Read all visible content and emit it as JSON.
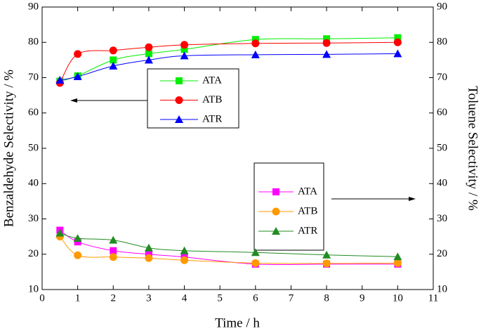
{
  "chart_data": {
    "type": "line",
    "x_label": "Time / h",
    "y_label": "Benzaldehyde Selectivity / %",
    "y2_label": "Toluene Selectivity / %",
    "xlim": [
      0,
      11
    ],
    "xticks": [
      0,
      1,
      2,
      3,
      4,
      5,
      6,
      7,
      8,
      9,
      10,
      11
    ],
    "ylim": [
      10,
      90
    ],
    "yticks": [
      10,
      20,
      30,
      40,
      50,
      60,
      70,
      80,
      90
    ],
    "y2lim": [
      10,
      90
    ],
    "y2ticks": [
      10,
      20,
      30,
      40,
      50,
      60,
      70,
      80,
      90
    ],
    "x": [
      0.5,
      1,
      2,
      3,
      4,
      6,
      8,
      10
    ],
    "series": [
      {
        "name": "ATA",
        "color": "#00ee00",
        "marker": "square",
        "values": [
          69,
          70.5,
          75,
          76.8,
          78,
          80.8,
          81,
          81.3
        ]
      },
      {
        "name": "ATB",
        "color": "#ff0000",
        "marker": "circle",
        "values": [
          68.5,
          76.7,
          77.7,
          78.6,
          79.3,
          79.7,
          79.8,
          80
        ]
      },
      {
        "name": "ATR",
        "color": "#0000ff",
        "marker": "triangle",
        "values": [
          69.3,
          70.3,
          73.3,
          75,
          76.2,
          76.5,
          76.6,
          76.8
        ]
      },
      {
        "name": "ATA",
        "color": "#ff00ff",
        "marker": "square",
        "axis": "y2",
        "values": [
          26.8,
          23.5,
          21,
          20,
          19.2,
          17.2,
          17.2,
          17.2
        ]
      },
      {
        "name": "ATB",
        "color": "#ff9900",
        "marker": "circle",
        "axis": "y2",
        "values": [
          25,
          19.7,
          19.2,
          18.9,
          18.3,
          17.5,
          17.4,
          17.5
        ]
      },
      {
        "name": "ATR",
        "color": "#228b22",
        "marker": "triangle",
        "axis": "y2",
        "values": [
          26,
          24.5,
          24,
          21.8,
          21,
          20.5,
          19.8,
          19.3
        ]
      }
    ]
  }
}
